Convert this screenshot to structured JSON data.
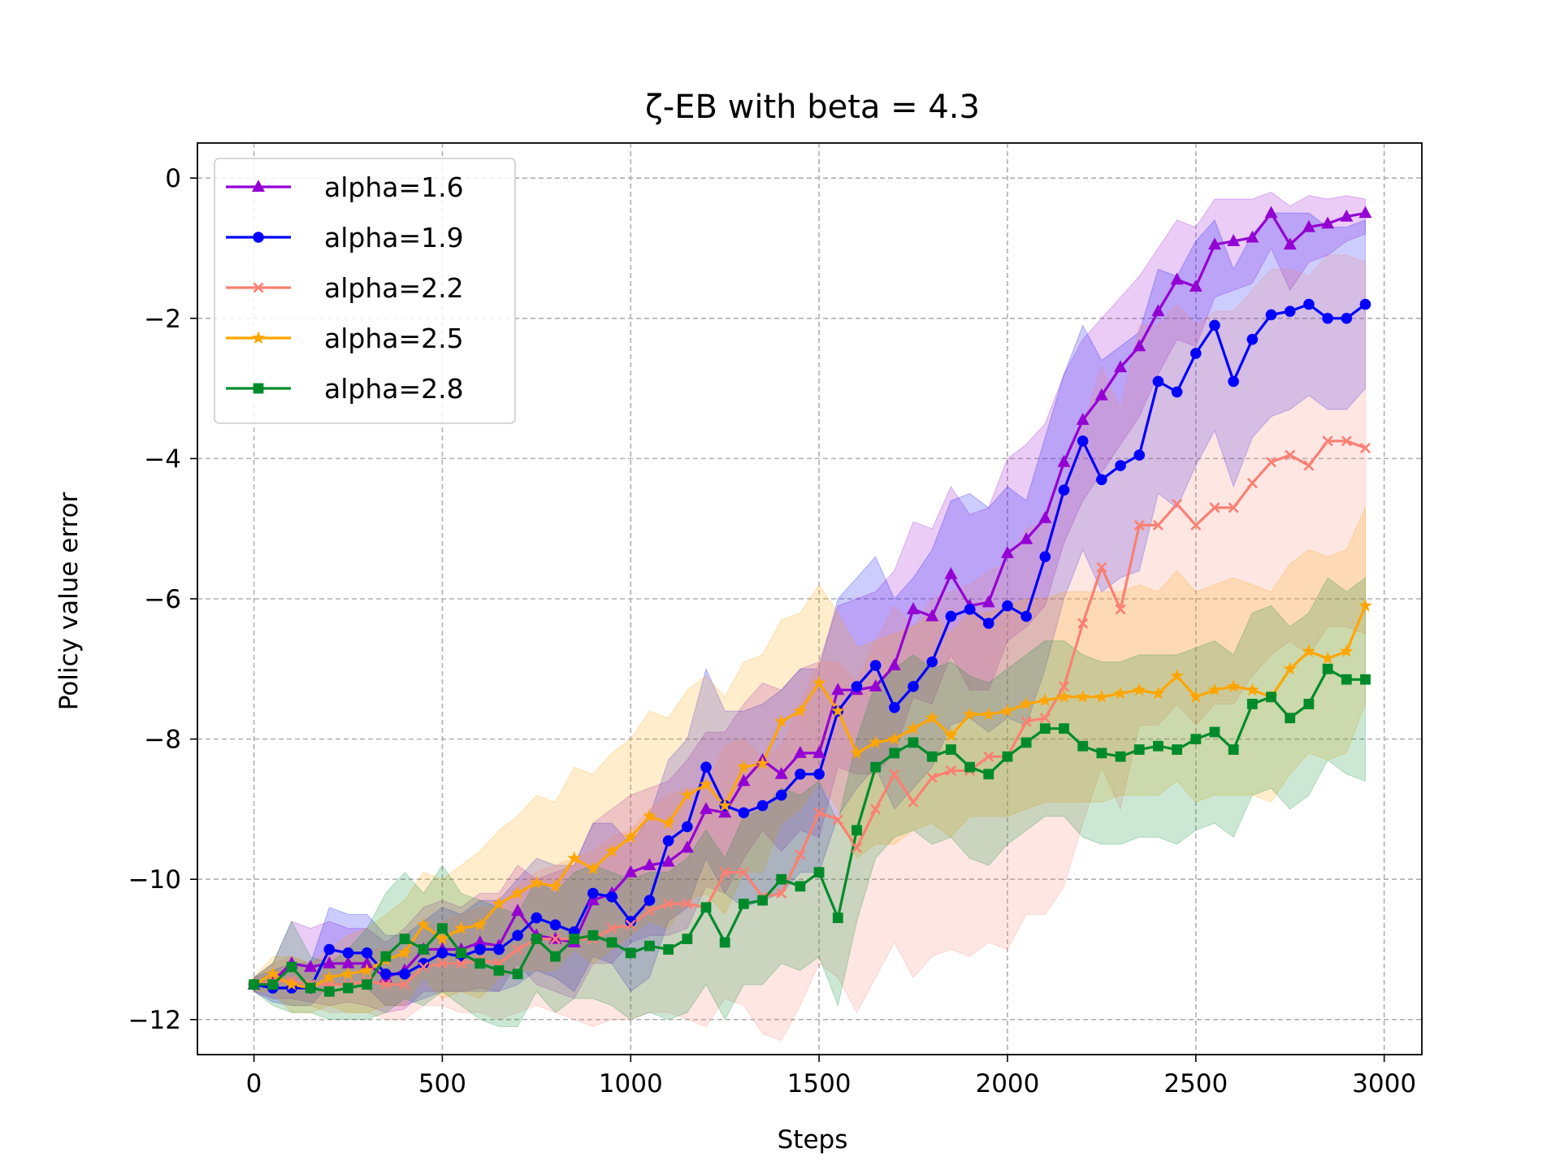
{
  "chart_data": {
    "type": "line",
    "title": "ζ-EB with beta = 4.3",
    "xlabel": "Steps",
    "ylabel": "Policy value error",
    "xlim": [
      -150,
      3100
    ],
    "ylim": [
      -12.5,
      0.5
    ],
    "xticks": [
      0,
      500,
      1000,
      1500,
      2000,
      2500,
      3000
    ],
    "yticks": [
      0,
      -2,
      -4,
      -6,
      -8,
      -10,
      -12
    ],
    "xtick_labels": [
      "0",
      "500",
      "1000",
      "1500",
      "2000",
      "2500",
      "3000"
    ],
    "ytick_labels": [
      "0",
      "−2",
      "−4",
      "−6",
      "−8",
      "−10",
      "−12"
    ],
    "grid": true,
    "legend_position": "top-left",
    "x": [
      0,
      50,
      100,
      150,
      200,
      250,
      300,
      350,
      400,
      450,
      500,
      550,
      600,
      650,
      700,
      750,
      800,
      850,
      900,
      950,
      1000,
      1050,
      1100,
      1150,
      1200,
      1250,
      1300,
      1350,
      1400,
      1450,
      1500,
      1550,
      1600,
      1650,
      1700,
      1750,
      1800,
      1850,
      1900,
      1950,
      2000,
      2050,
      2100,
      2150,
      2200,
      2250,
      2300,
      2350,
      2400,
      2450,
      2500,
      2550,
      2600,
      2650,
      2700,
      2750,
      2800,
      2850,
      2900,
      2950
    ],
    "series": [
      {
        "name": "alpha=1.6",
        "color": "#9400d3",
        "marker": "triangle",
        "values": [
          -11.5,
          -11.45,
          -11.2,
          -11.25,
          -11.2,
          -11.2,
          -11.2,
          -11.4,
          -11.3,
          -11.0,
          -11.0,
          -11.0,
          -10.9,
          -10.95,
          -10.45,
          -10.8,
          -10.85,
          -10.9,
          -10.3,
          -10.2,
          -9.9,
          -9.8,
          -9.75,
          -9.55,
          -9.0,
          -9.05,
          -8.6,
          -8.3,
          -8.5,
          -8.2,
          -8.2,
          -7.3,
          -7.3,
          -7.25,
          -6.95,
          -6.15,
          -6.25,
          -5.65,
          -6.1,
          -6.05,
          -5.35,
          -5.15,
          -4.85,
          -4.05,
          -3.45,
          -3.1,
          -2.7,
          -2.4,
          -1.9,
          -1.45,
          -1.55,
          -0.95,
          -0.9,
          -0.85,
          -0.5,
          -0.95,
          -0.7,
          -0.65,
          -0.55,
          -0.5
        ],
        "band_upper": [
          -11.4,
          -11.2,
          -10.6,
          -10.7,
          -10.6,
          -10.7,
          -10.7,
          -10.9,
          -10.7,
          -10.4,
          -10.3,
          -10.4,
          -10.2,
          -10.2,
          -9.8,
          -10.0,
          -9.9,
          -9.8,
          -9.2,
          -9.0,
          -8.8,
          -8.7,
          -8.6,
          -8.3,
          -7.9,
          -7.9,
          -7.5,
          -7.2,
          -7.3,
          -7.0,
          -6.9,
          -6.1,
          -6.0,
          -5.9,
          -5.6,
          -4.9,
          -5.0,
          -4.4,
          -4.8,
          -4.7,
          -4.0,
          -3.8,
          -3.5,
          -2.8,
          -2.3,
          -2.0,
          -1.7,
          -1.4,
          -1.0,
          -0.6,
          -0.7,
          -0.3,
          -0.3,
          -0.3,
          -0.2,
          -0.4,
          -0.25,
          -0.3,
          -0.25,
          -0.3
        ],
        "band_lower": [
          -11.6,
          -11.7,
          -11.7,
          -11.75,
          -11.8,
          -11.75,
          -11.8,
          -11.9,
          -11.85,
          -11.6,
          -11.6,
          -11.6,
          -11.55,
          -11.6,
          -11.2,
          -11.5,
          -11.6,
          -11.7,
          -11.2,
          -11.2,
          -10.9,
          -10.8,
          -10.8,
          -10.7,
          -10.1,
          -10.2,
          -9.7,
          -9.3,
          -9.6,
          -9.3,
          -9.4,
          -8.4,
          -8.5,
          -8.5,
          -8.2,
          -7.4,
          -7.5,
          -6.8,
          -7.3,
          -7.3,
          -6.6,
          -6.4,
          -6.1,
          -5.2,
          -4.6,
          -4.2,
          -3.8,
          -3.4,
          -2.8,
          -2.3,
          -2.4,
          -1.7,
          -1.6,
          -1.5,
          -1.0,
          -1.6,
          -1.2,
          -1.1,
          -0.9,
          -0.8
        ]
      },
      {
        "name": "alpha=1.9",
        "color": "#0000ff",
        "marker": "circle",
        "values": [
          -11.5,
          -11.55,
          -11.55,
          -11.55,
          -11.0,
          -11.05,
          -11.05,
          -11.35,
          -11.35,
          -11.2,
          -11.05,
          -11.1,
          -11.0,
          -11.0,
          -10.8,
          -10.55,
          -10.65,
          -10.75,
          -10.2,
          -10.25,
          -10.6,
          -10.3,
          -9.45,
          -9.25,
          -8.4,
          -8.95,
          -9.05,
          -8.95,
          -8.8,
          -8.5,
          -8.5,
          -7.6,
          -7.25,
          -6.95,
          -7.55,
          -7.25,
          -6.9,
          -6.25,
          -6.15,
          -6.35,
          -6.1,
          -6.25,
          -5.4,
          -4.45,
          -3.75,
          -4.3,
          -4.1,
          -3.95,
          -2.9,
          -3.05,
          -2.5,
          -2.1,
          -2.9,
          -2.3,
          -1.95,
          -1.9,
          -1.8,
          -2.0,
          -2.0,
          -1.8
        ],
        "band_upper": [
          -11.4,
          -11.3,
          -11.2,
          -11.2,
          -10.4,
          -10.5,
          -10.5,
          -10.8,
          -10.8,
          -10.6,
          -10.4,
          -10.5,
          -10.3,
          -10.3,
          -10.0,
          -9.7,
          -9.8,
          -9.8,
          -9.2,
          -9.2,
          -9.5,
          -9.1,
          -8.3,
          -8.0,
          -7.0,
          -7.6,
          -7.6,
          -7.5,
          -7.3,
          -7.0,
          -7.0,
          -6.0,
          -5.7,
          -5.4,
          -6.0,
          -5.7,
          -5.3,
          -4.6,
          -4.5,
          -4.7,
          -4.4,
          -4.6,
          -3.7,
          -2.8,
          -2.1,
          -2.6,
          -2.4,
          -2.2,
          -1.3,
          -1.4,
          -0.9,
          -0.6,
          -1.3,
          -0.8,
          -0.5,
          -0.5,
          -0.5,
          -0.7,
          -0.7,
          -0.6
        ],
        "band_lower": [
          -11.6,
          -11.75,
          -11.8,
          -11.8,
          -11.5,
          -11.5,
          -11.55,
          -11.8,
          -11.8,
          -11.7,
          -11.6,
          -11.6,
          -11.6,
          -11.6,
          -11.5,
          -11.3,
          -11.4,
          -11.6,
          -11.1,
          -11.2,
          -11.6,
          -11.4,
          -10.6,
          -10.4,
          -9.7,
          -10.2,
          -10.4,
          -10.3,
          -10.2,
          -9.9,
          -9.9,
          -9.1,
          -8.7,
          -8.4,
          -9.0,
          -8.7,
          -8.4,
          -7.8,
          -7.7,
          -7.9,
          -7.7,
          -7.8,
          -7.0,
          -6.0,
          -5.3,
          -5.9,
          -5.7,
          -5.6,
          -4.5,
          -4.7,
          -4.1,
          -3.6,
          -4.4,
          -3.7,
          -3.4,
          -3.3,
          -3.1,
          -3.3,
          -3.3,
          -3.0
        ]
      },
      {
        "name": "alpha=2.2",
        "color": "#fa8072",
        "marker": "x",
        "values": [
          -11.5,
          -11.45,
          -11.45,
          -11.5,
          -11.5,
          -11.5,
          -11.45,
          -11.5,
          -11.5,
          -11.25,
          -11.2,
          -11.2,
          -11.15,
          -11.2,
          -11.0,
          -10.85,
          -10.85,
          -10.85,
          -10.85,
          -10.7,
          -10.65,
          -10.45,
          -10.35,
          -10.35,
          -10.4,
          -9.9,
          -9.9,
          -10.25,
          -10.2,
          -9.65,
          -9.05,
          -9.15,
          -9.55,
          -9.0,
          -8.5,
          -8.9,
          -8.55,
          -8.45,
          -8.45,
          -8.25,
          -8.25,
          -7.75,
          -7.7,
          -7.25,
          -6.35,
          -5.55,
          -6.15,
          -4.95,
          -4.95,
          -4.65,
          -4.95,
          -4.7,
          -4.7,
          -4.35,
          -4.05,
          -3.95,
          -4.1,
          -3.75,
          -3.75,
          -3.85
        ],
        "band_upper": [
          -11.4,
          -11.2,
          -11.1,
          -11.2,
          -11.1,
          -11.1,
          -11.0,
          -11.0,
          -11.0,
          -10.7,
          -10.6,
          -10.5,
          -10.4,
          -10.4,
          -10.1,
          -9.9,
          -9.8,
          -9.7,
          -9.6,
          -9.4,
          -9.3,
          -9.0,
          -8.8,
          -8.7,
          -8.7,
          -8.1,
          -8.0,
          -8.3,
          -8.1,
          -7.5,
          -6.9,
          -6.9,
          -7.2,
          -6.6,
          -6.1,
          -6.4,
          -6.0,
          -5.9,
          -5.8,
          -5.6,
          -5.5,
          -5.0,
          -4.9,
          -4.4,
          -3.5,
          -2.7,
          -3.3,
          -2.1,
          -2.1,
          -1.8,
          -2.1,
          -1.9,
          -1.9,
          -1.6,
          -1.3,
          -1.3,
          -1.4,
          -1.1,
          -1.1,
          -1.2
        ],
        "band_lower": [
          -11.6,
          -11.7,
          -11.8,
          -11.8,
          -11.9,
          -11.9,
          -11.9,
          -12.0,
          -12.0,
          -11.8,
          -11.8,
          -11.9,
          -11.9,
          -12.0,
          -11.9,
          -11.8,
          -11.9,
          -12.0,
          -12.1,
          -12.0,
          -12.0,
          -11.9,
          -11.9,
          -12.0,
          -12.1,
          -11.7,
          -11.8,
          -12.2,
          -12.3,
          -11.8,
          -11.2,
          -11.4,
          -11.9,
          -11.4,
          -10.9,
          -11.4,
          -11.1,
          -11.0,
          -11.1,
          -10.9,
          -11.0,
          -10.5,
          -10.5,
          -10.1,
          -9.2,
          -8.4,
          -9.0,
          -7.8,
          -7.8,
          -7.5,
          -7.8,
          -7.5,
          -7.5,
          -7.1,
          -6.8,
          -6.6,
          -6.8,
          -6.4,
          -6.4,
          -6.5
        ]
      },
      {
        "name": "alpha=2.5",
        "color": "#ffa500",
        "marker": "star",
        "values": [
          -11.5,
          -11.35,
          -11.5,
          -11.55,
          -11.4,
          -11.35,
          -11.3,
          -11.15,
          -11.05,
          -10.65,
          -10.85,
          -10.7,
          -10.65,
          -10.35,
          -10.2,
          -10.05,
          -10.1,
          -9.7,
          -9.85,
          -9.6,
          -9.4,
          -9.1,
          -9.2,
          -8.8,
          -8.65,
          -8.95,
          -8.4,
          -8.35,
          -7.75,
          -7.6,
          -7.2,
          -7.6,
          -8.2,
          -8.05,
          -8.0,
          -7.85,
          -7.7,
          -7.95,
          -7.65,
          -7.65,
          -7.6,
          -7.5,
          -7.45,
          -7.4,
          -7.4,
          -7.4,
          -7.35,
          -7.3,
          -7.35,
          -7.1,
          -7.4,
          -7.3,
          -7.25,
          -7.3,
          -7.4,
          -7.0,
          -6.75,
          -6.85,
          -6.75,
          -6.1
        ],
        "band_upper": [
          -11.4,
          -11.1,
          -11.1,
          -11.2,
          -11.0,
          -10.8,
          -10.7,
          -10.5,
          -10.3,
          -9.9,
          -10.0,
          -9.8,
          -9.6,
          -9.3,
          -9.1,
          -8.8,
          -8.9,
          -8.4,
          -8.5,
          -8.2,
          -8.0,
          -7.6,
          -7.7,
          -7.3,
          -7.1,
          -7.4,
          -6.9,
          -6.8,
          -6.3,
          -6.2,
          -5.8,
          -6.2,
          -6.7,
          -6.6,
          -6.5,
          -6.4,
          -6.2,
          -6.5,
          -6.2,
          -6.2,
          -6.1,
          -6.0,
          -6.0,
          -5.9,
          -5.9,
          -5.9,
          -5.9,
          -5.8,
          -5.9,
          -5.6,
          -5.9,
          -5.8,
          -5.7,
          -5.8,
          -5.9,
          -5.5,
          -5.3,
          -5.4,
          -5.3,
          -4.7
        ],
        "band_lower": [
          -11.6,
          -11.6,
          -11.9,
          -11.9,
          -11.8,
          -11.9,
          -11.9,
          -11.8,
          -11.8,
          -11.4,
          -11.7,
          -11.6,
          -11.7,
          -11.4,
          -11.3,
          -11.3,
          -11.3,
          -11.0,
          -11.2,
          -11.0,
          -10.8,
          -10.6,
          -10.7,
          -10.3,
          -10.2,
          -10.5,
          -9.9,
          -9.9,
          -9.2,
          -9.0,
          -8.6,
          -9.0,
          -9.7,
          -9.5,
          -9.5,
          -9.3,
          -9.2,
          -9.4,
          -9.1,
          -9.1,
          -9.1,
          -9.0,
          -8.9,
          -8.9,
          -8.9,
          -8.9,
          -8.8,
          -8.8,
          -8.8,
          -8.6,
          -8.9,
          -8.8,
          -8.8,
          -8.8,
          -8.9,
          -8.5,
          -8.2,
          -8.3,
          -8.2,
          -7.5
        ]
      },
      {
        "name": "alpha=2.8",
        "color": "#008b2b",
        "marker": "square",
        "values": [
          -11.5,
          -11.5,
          -11.25,
          -11.55,
          -11.6,
          -11.55,
          -11.5,
          -11.1,
          -10.85,
          -11.0,
          -10.7,
          -11.05,
          -11.2,
          -11.3,
          -11.35,
          -10.85,
          -11.1,
          -10.85,
          -10.8,
          -10.9,
          -11.05,
          -10.95,
          -11.0,
          -10.85,
          -10.4,
          -10.9,
          -10.35,
          -10.3,
          -10.0,
          -10.1,
          -9.9,
          -10.55,
          -9.3,
          -8.4,
          -8.2,
          -8.05,
          -8.25,
          -8.15,
          -8.4,
          -8.5,
          -8.25,
          -8.05,
          -7.85,
          -7.85,
          -8.1,
          -8.2,
          -8.25,
          -8.15,
          -8.1,
          -8.15,
          -8.0,
          -7.9,
          -8.15,
          -7.5,
          -7.4,
          -7.7,
          -7.5,
          -7.0,
          -7.15,
          -7.15
        ],
        "band_upper": [
          -11.4,
          -11.2,
          -10.6,
          -11.1,
          -11.2,
          -11.0,
          -10.7,
          -10.2,
          -9.9,
          -10.2,
          -9.8,
          -10.2,
          -10.3,
          -10.4,
          -10.5,
          -10.0,
          -10.2,
          -9.9,
          -9.8,
          -9.9,
          -10.0,
          -9.9,
          -9.9,
          -9.7,
          -9.3,
          -9.7,
          -9.1,
          -9.0,
          -8.7,
          -8.8,
          -8.6,
          -9.2,
          -8.0,
          -7.2,
          -7.0,
          -6.8,
          -7.0,
          -6.9,
          -7.1,
          -7.2,
          -7.0,
          -6.8,
          -6.6,
          -6.6,
          -6.8,
          -6.9,
          -6.9,
          -6.8,
          -6.8,
          -6.8,
          -6.7,
          -6.6,
          -6.8,
          -6.2,
          -6.1,
          -6.4,
          -6.2,
          -5.7,
          -5.9,
          -5.7
        ],
        "band_lower": [
          -11.6,
          -11.8,
          -11.9,
          -11.9,
          -12.0,
          -12.0,
          -12.0,
          -11.9,
          -11.7,
          -11.8,
          -11.6,
          -11.8,
          -12.0,
          -12.1,
          -12.1,
          -11.6,
          -11.9,
          -11.7,
          -11.7,
          -11.8,
          -12.0,
          -11.9,
          -12.0,
          -11.9,
          -11.5,
          -12.0,
          -11.5,
          -11.5,
          -11.2,
          -11.3,
          -11.1,
          -11.8,
          -10.6,
          -9.7,
          -9.4,
          -9.3,
          -9.5,
          -9.4,
          -9.7,
          -9.8,
          -9.5,
          -9.3,
          -9.1,
          -9.1,
          -9.4,
          -9.5,
          -9.5,
          -9.4,
          -9.4,
          -9.5,
          -9.3,
          -9.2,
          -9.4,
          -8.8,
          -8.7,
          -9.0,
          -8.8,
          -8.3,
          -8.5,
          -8.6
        ]
      }
    ]
  }
}
